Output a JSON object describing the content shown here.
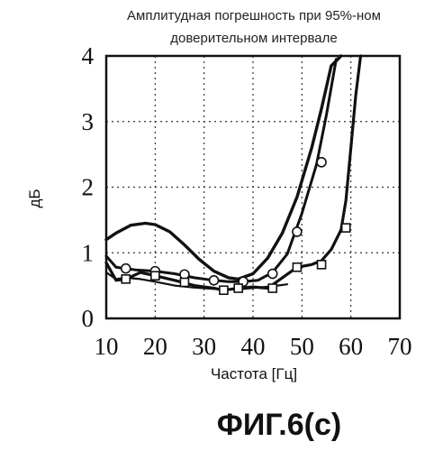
{
  "figure": {
    "caption": "ФИГ.6(c)"
  },
  "chart_data": {
    "type": "line",
    "title_lines": [
      "Амплитудная погрешность при 95%-ном",
      "доверительном интервале"
    ],
    "xlabel": "Частота [Гц]",
    "ylabel": "дБ",
    "xlim": [
      10,
      70
    ],
    "ylim": [
      0,
      4
    ],
    "x_ticks": [
      10,
      20,
      30,
      40,
      50,
      60,
      70
    ],
    "y_ticks": [
      0,
      1,
      2,
      3,
      4
    ],
    "grid": true,
    "series": [
      {
        "marker": "none",
        "x": [
          10,
          12,
          15,
          18,
          20,
          23,
          26,
          29,
          32,
          35,
          37,
          40,
          43,
          46,
          49,
          52,
          54,
          56,
          58
        ],
        "y": [
          1.2,
          1.3,
          1.42,
          1.45,
          1.43,
          1.32,
          1.12,
          0.9,
          0.72,
          0.62,
          0.6,
          0.68,
          0.92,
          1.3,
          1.85,
          2.6,
          3.2,
          3.85,
          4.0
        ]
      },
      {
        "marker": "circle",
        "x": [
          10,
          12,
          14,
          16,
          20,
          24,
          28,
          32,
          35,
          38,
          41,
          44,
          47,
          50,
          53,
          55,
          57
        ],
        "y": [
          0.95,
          0.78,
          0.76,
          0.74,
          0.72,
          0.68,
          0.62,
          0.58,
          0.56,
          0.56,
          0.58,
          0.7,
          0.98,
          1.6,
          2.35,
          3.1,
          3.95
        ],
        "marker_x": [
          14,
          20,
          26,
          32,
          38,
          44,
          49,
          54
        ],
        "marker_y": [
          0.76,
          0.72,
          0.67,
          0.58,
          0.56,
          0.68,
          1.32,
          2.38
        ]
      },
      {
        "marker": "square",
        "x": [
          10,
          12,
          14,
          17,
          20,
          24,
          28,
          32,
          34,
          37,
          40,
          43,
          46,
          49,
          52,
          54,
          56,
          58,
          59,
          60,
          61,
          62
        ],
        "y": [
          0.85,
          0.58,
          0.6,
          0.7,
          0.65,
          0.58,
          0.5,
          0.46,
          0.43,
          0.46,
          0.48,
          0.46,
          0.62,
          0.78,
          0.82,
          0.88,
          1.05,
          1.35,
          1.8,
          2.6,
          3.4,
          4.0
        ],
        "marker_x": [
          14,
          20,
          26,
          34,
          37,
          44,
          49,
          54,
          59
        ],
        "marker_y": [
          0.6,
          0.65,
          0.55,
          0.43,
          0.46,
          0.46,
          0.78,
          0.82,
          1.38
        ]
      },
      {
        "marker": "none",
        "x": [
          10,
          12,
          14,
          17,
          20,
          24,
          28,
          32,
          35,
          38,
          41,
          44,
          47
        ],
        "y": [
          0.7,
          0.6,
          0.62,
          0.6,
          0.56,
          0.5,
          0.47,
          0.45,
          0.44,
          0.45,
          0.47,
          0.49,
          0.52
        ]
      }
    ]
  }
}
